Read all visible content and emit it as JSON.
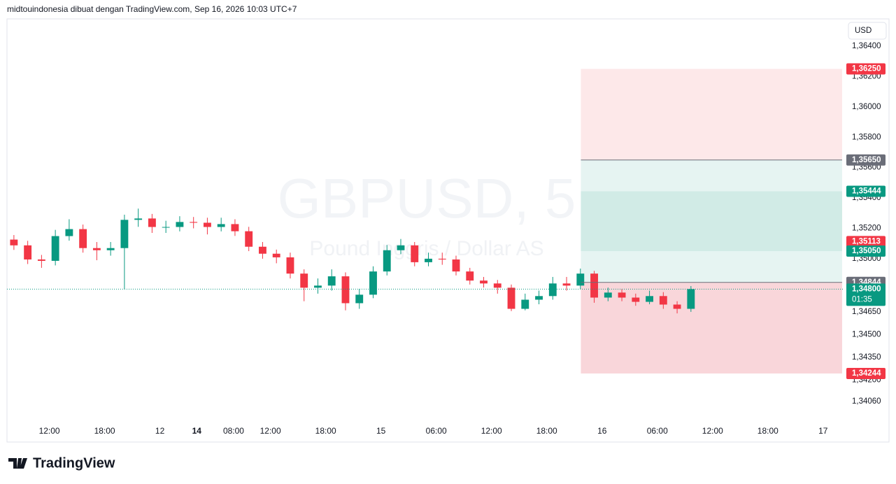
{
  "header": "midtouindonesia dibuat dengan TradingView.com, Sep 16, 2026 10:03 UTC+7",
  "footer": {
    "logo": "TradingView"
  },
  "chart_data": {
    "type": "candlestick",
    "watermark": "GBPUSD, 5",
    "watermark_subtitle": "Pound Inggris / Dollar AS",
    "currency": "USD",
    "up_color": "#089981",
    "down_color": "#f23645",
    "grid": false,
    "xlim": [
      0,
      90.74
    ],
    "xticks": [
      {
        "value": 4.6,
        "label": "12:00"
      },
      {
        "value": 10.6,
        "label": "18:00"
      },
      {
        "value": 16.6,
        "label": "12"
      },
      {
        "value": 20.6,
        "label": "14",
        "bold": true
      },
      {
        "value": 24.6,
        "label": "08:00"
      },
      {
        "value": 28.6,
        "label": "12:00"
      },
      {
        "value": 34.6,
        "label": "18:00"
      },
      {
        "value": 40.6,
        "label": "15"
      },
      {
        "value": 46.6,
        "label": "06:00"
      },
      {
        "value": 52.6,
        "label": "12:00"
      },
      {
        "value": 58.6,
        "label": "18:00"
      },
      {
        "value": 64.6,
        "label": "16"
      },
      {
        "value": 70.6,
        "label": "06:00"
      },
      {
        "value": 76.6,
        "label": "12:00"
      },
      {
        "value": 82.6,
        "label": "18:00"
      },
      {
        "value": 88.6,
        "label": "17"
      }
    ],
    "ylim": [
      1.3394,
      1.36575
    ],
    "yticks": [
      {
        "value": 1.364,
        "label": "1,36400"
      },
      {
        "value": 1.362,
        "label": "1,36200"
      },
      {
        "value": 1.36,
        "label": "1,36000"
      },
      {
        "value": 1.358,
        "label": "1,35800"
      },
      {
        "value": 1.356,
        "label": "1,35600"
      },
      {
        "value": 1.354,
        "label": "1,35400"
      },
      {
        "value": 1.352,
        "label": "1,35200"
      },
      {
        "value": 1.35,
        "label": "1,35000"
      },
      {
        "value": 1.3465,
        "label": "1,34650"
      },
      {
        "value": 1.345,
        "label": "1,34500"
      },
      {
        "value": 1.3435,
        "label": "1,34350"
      },
      {
        "value": 1.342,
        "label": "1,34200"
      },
      {
        "value": 1.3406,
        "label": "1,34060"
      }
    ],
    "x": [
      0.75,
      2.25,
      3.75,
      5.25,
      6.75,
      8.25,
      9.75,
      11.25,
      12.75,
      14.25,
      15.75,
      17.25,
      18.75,
      20.25,
      21.75,
      23.25,
      24.75,
      26.25,
      27.75,
      29.25,
      30.75,
      32.25,
      33.75,
      35.25,
      36.75,
      38.25,
      39.75,
      41.25,
      42.75,
      44.25,
      45.75,
      47.25,
      48.75,
      50.25,
      51.75,
      53.25,
      54.75,
      56.25,
      57.75,
      59.25,
      60.75,
      62.25,
      63.75,
      65.25,
      66.75,
      68.25,
      69.75,
      71.25,
      72.75,
      74.25
    ],
    "open": [
      1.35126,
      1.35088,
      1.34995,
      1.34986,
      1.35149,
      1.35195,
      1.3507,
      1.35056,
      1.3507,
      1.35256,
      1.35265,
      1.35209,
      1.35209,
      1.35242,
      1.35237,
      1.35209,
      1.35228,
      1.35181,
      1.35079,
      1.35033,
      1.35009,
      1.34902,
      1.34809,
      1.34823,
      1.34884,
      1.34707,
      1.34763,
      1.34916,
      1.35056,
      1.35088,
      1.34977,
      1.35,
      1.34995,
      1.34916,
      1.34856,
      1.34837,
      1.34809,
      1.3467,
      1.3473,
      1.34754,
      1.34837,
      1.34823,
      1.34902,
      1.34744,
      1.34777,
      1.34744,
      1.34716,
      1.34754,
      1.34698,
      1.3467
    ],
    "high": [
      1.35156,
      1.35118,
      1.35025,
      1.3519,
      1.3526,
      1.35225,
      1.3511,
      1.3511,
      1.3529,
      1.3533,
      1.35295,
      1.3525,
      1.3528,
      1.35275,
      1.3527,
      1.3527,
      1.3526,
      1.3521,
      1.3511,
      1.3506,
      1.3504,
      1.3493,
      1.3487,
      1.3493,
      1.3491,
      1.348,
      1.3495,
      1.3509,
      1.3513,
      1.3511,
      1.3504,
      1.3504,
      1.3502,
      1.3494,
      1.3488,
      1.3486,
      1.3483,
      1.3477,
      1.3479,
      1.3488,
      1.3488,
      1.34935,
      1.3492,
      1.3481,
      1.348,
      1.3477,
      1.3479,
      1.3478,
      1.3472,
      1.3482
    ],
    "low": [
      1.35058,
      1.34965,
      1.3494,
      1.34956,
      1.35119,
      1.3504,
      1.3499,
      1.3502,
      1.348,
      1.3521,
      1.3517,
      1.3517,
      1.3518,
      1.352,
      1.3516,
      1.3518,
      1.3515,
      1.3505,
      1.35,
      1.3497,
      1.3487,
      1.3472,
      1.3477,
      1.3479,
      1.3466,
      1.3467,
      1.3474,
      1.3489,
      1.3503,
      1.3495,
      1.3495,
      1.3496,
      1.3489,
      1.3483,
      1.3481,
      1.3477,
      1.34655,
      1.3466,
      1.347,
      1.3473,
      1.3479,
      1.348,
      1.3471,
      1.3472,
      1.3472,
      1.3469,
      1.347,
      1.3467,
      1.3464,
      1.3465
    ],
    "close": [
      1.35088,
      1.34995,
      1.34986,
      1.35149,
      1.35195,
      1.3507,
      1.35056,
      1.3507,
      1.35256,
      1.35265,
      1.35209,
      1.35209,
      1.35242,
      1.35237,
      1.35209,
      1.35228,
      1.35181,
      1.35079,
      1.35033,
      1.35009,
      1.34902,
      1.34809,
      1.34823,
      1.34884,
      1.34707,
      1.34763,
      1.34916,
      1.35056,
      1.35088,
      1.34977,
      1.35,
      1.34995,
      1.34916,
      1.34856,
      1.34837,
      1.34809,
      1.3467,
      1.3473,
      1.34754,
      1.34837,
      1.34823,
      1.34902,
      1.34744,
      1.34777,
      1.34744,
      1.34716,
      1.34754,
      1.34698,
      1.3467,
      1.348
    ],
    "zone_x": [
      62.3,
      90.66
    ],
    "zones": [
      {
        "top": 1.3625,
        "bottom": 1.3565,
        "color": "#fde8e9"
      },
      {
        "top": 1.3565,
        "bottom": 1.34844,
        "color": "#e6f4f2"
      },
      {
        "top": 1.35444,
        "bottom": 1.3505,
        "color": "#d1ebe6"
      },
      {
        "top": 1.34844,
        "bottom": 1.34244,
        "color": "#f9d6da"
      }
    ],
    "price_labels": [
      {
        "value": 1.3625,
        "label": "1,36250",
        "color": "#f23645"
      },
      {
        "value": 1.3565,
        "label": "1,35650",
        "color": "#6a6d78",
        "line": "zone"
      },
      {
        "value": 1.35444,
        "label": "1,35444",
        "color": "#089981"
      },
      {
        "value": 1.35113,
        "label": "1,35113",
        "color": "#f23645"
      },
      {
        "value": 1.3505,
        "label": "1,35050",
        "color": "#089981"
      },
      {
        "value": 1.34844,
        "label": "1,34844",
        "color": "#6a6d78",
        "line": "zone"
      },
      {
        "value": 1.348,
        "label": "1,34800",
        "color": "#089981",
        "countdown": "01:35",
        "line": "dotted"
      },
      {
        "value": 1.34244,
        "label": "1,34244",
        "color": "#f23645"
      }
    ]
  }
}
